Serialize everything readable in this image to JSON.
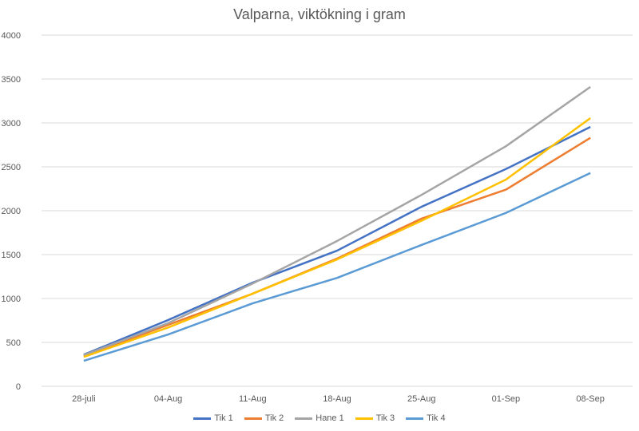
{
  "chart_data": {
    "type": "line",
    "title": "Valparna, viktökning i gram",
    "xlabel": "",
    "ylabel": "",
    "categories": [
      "28-juli",
      "04-Aug",
      "11-Aug",
      "18-Aug",
      "25-Aug",
      "01-Sep",
      "08-Sep"
    ],
    "ylim": [
      0,
      4000
    ],
    "yticks": [
      0,
      500,
      1000,
      1500,
      2000,
      2500,
      3000,
      3500,
      4000
    ],
    "grid": true,
    "legend": "bottom",
    "series": [
      {
        "name": "Tik 1",
        "color": "#4472C4",
        "values": [
          360,
          755,
          1180,
          1545,
          2045,
          2475,
          2955
        ]
      },
      {
        "name": "Tik 2",
        "color": "#ED7D31",
        "values": [
          345,
          700,
          1055,
          1455,
          1910,
          2240,
          2830
        ]
      },
      {
        "name": "Hane 1",
        "color": "#A5A5A5",
        "values": [
          355,
          720,
          1170,
          1655,
          2180,
          2735,
          3410
        ]
      },
      {
        "name": "Tik 3",
        "color": "#FFC000",
        "values": [
          335,
          670,
          1055,
          1445,
          1885,
          2355,
          3055
        ]
      },
      {
        "name": "Tik 4",
        "color": "#5B9BD5",
        "values": [
          290,
          590,
          945,
          1235,
          1610,
          1975,
          2430
        ]
      }
    ]
  }
}
